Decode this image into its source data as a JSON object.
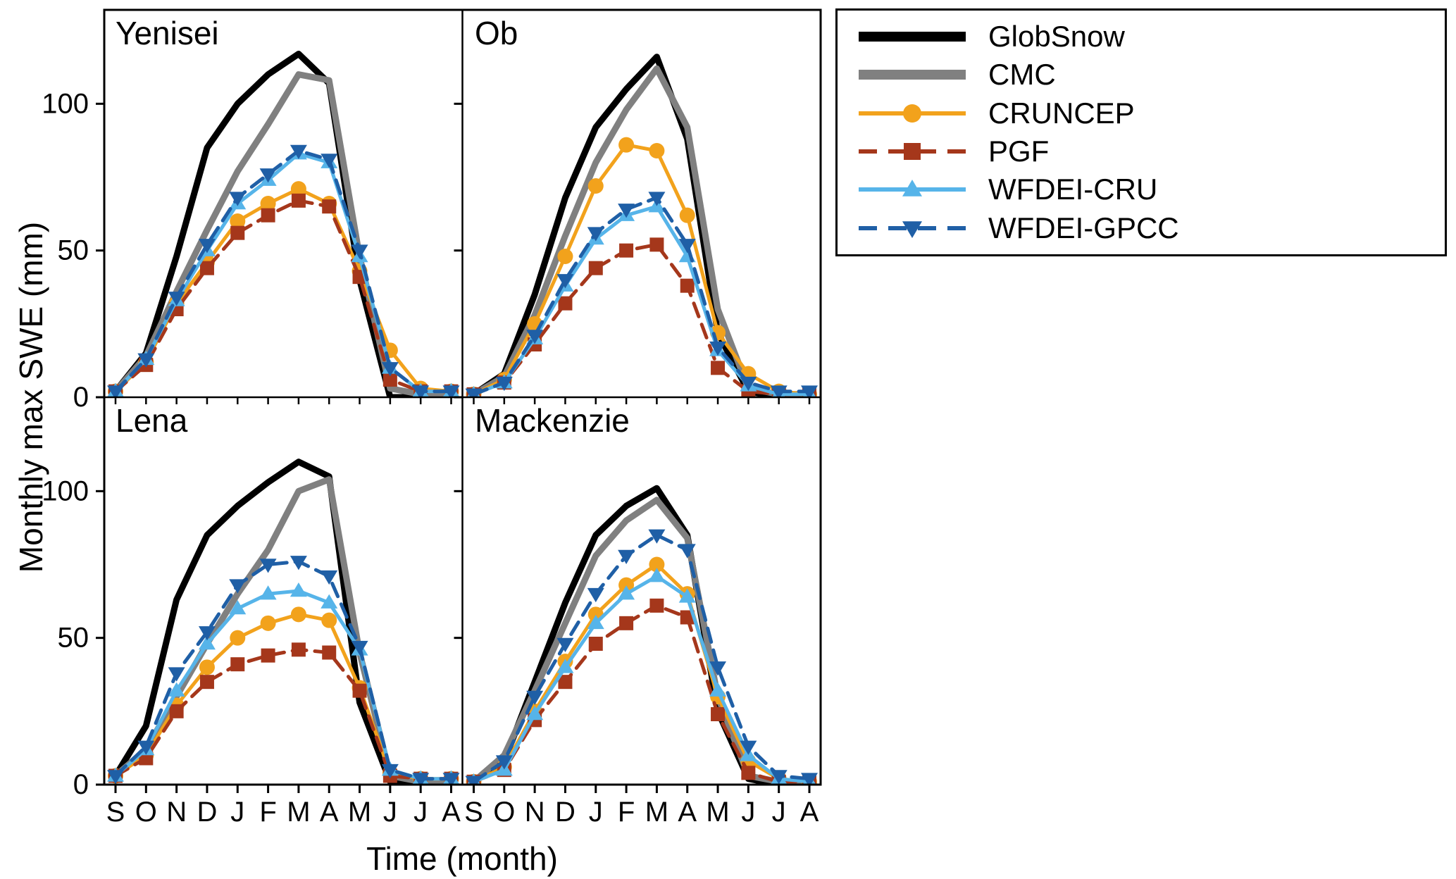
{
  "chart_data": {
    "type": "line",
    "categories": [
      "S",
      "O",
      "N",
      "D",
      "J",
      "F",
      "M",
      "A",
      "M",
      "J",
      "J",
      "A"
    ],
    "xlabel": "Time (month)",
    "ylabel": "Monthly max SWE (mm)",
    "yticks": [
      0,
      50,
      100
    ],
    "ylim": [
      0,
      132
    ],
    "grid": false,
    "legend_position": "top-right-outside",
    "panels": [
      {
        "title": "Yenisei"
      },
      {
        "title": "Ob"
      },
      {
        "title": "Lena"
      },
      {
        "title": "Mackenzie"
      }
    ],
    "series": [
      {
        "name": "GlobSnow",
        "color": "#000000",
        "width": 9,
        "dash": null,
        "marker": null,
        "values": {
          "Yenisei": [
            2,
            15,
            48,
            85,
            100,
            110,
            117,
            107,
            40,
            0,
            0,
            0
          ],
          "Ob": [
            1,
            8,
            35,
            68,
            92,
            105,
            116,
            88,
            22,
            2,
            0,
            0
          ],
          "Lena": [
            3,
            20,
            63,
            85,
            95,
            103,
            110,
            105,
            28,
            1,
            0,
            0
          ],
          "Mackenzie": [
            1,
            8,
            35,
            62,
            85,
            95,
            101,
            85,
            25,
            2,
            0,
            0
          ]
        }
      },
      {
        "name": "CMC",
        "color": "#808080",
        "width": 9,
        "dash": null,
        "marker": null,
        "values": {
          "Yenisei": [
            2,
            14,
            36,
            57,
            77,
            93,
            110,
            108,
            48,
            3,
            1,
            1
          ],
          "Ob": [
            1,
            7,
            28,
            55,
            80,
            98,
            112,
            92,
            30,
            3,
            1,
            1
          ],
          "Lena": [
            3,
            12,
            30,
            48,
            65,
            80,
            100,
            104,
            45,
            3,
            1,
            1
          ],
          "Mackenzie": [
            1,
            10,
            32,
            55,
            78,
            90,
            97,
            84,
            30,
            3,
            1,
            1
          ]
        }
      },
      {
        "name": "CRUNCEP",
        "color": "#f2a21c",
        "width": 5,
        "dash": null,
        "marker": "circle",
        "values": {
          "Yenisei": [
            2,
            12,
            32,
            46,
            60,
            66,
            71,
            66,
            43,
            16,
            3,
            2
          ],
          "Ob": [
            1,
            6,
            25,
            48,
            72,
            86,
            84,
            62,
            22,
            8,
            2,
            1
          ],
          "Lena": [
            3,
            10,
            27,
            40,
            50,
            55,
            58,
            56,
            33,
            4,
            2,
            2
          ],
          "Mackenzie": [
            1,
            6,
            25,
            42,
            58,
            68,
            75,
            65,
            30,
            8,
            2,
            1
          ]
        }
      },
      {
        "name": "PGF",
        "color": "#a5371b",
        "width": 5,
        "dash": "20 12",
        "marker": "square",
        "values": {
          "Yenisei": [
            2,
            11,
            30,
            44,
            56,
            62,
            67,
            65,
            41,
            6,
            2,
            2
          ],
          "Ob": [
            1,
            5,
            18,
            32,
            44,
            50,
            52,
            38,
            10,
            2,
            1,
            1
          ],
          "Lena": [
            3,
            9,
            25,
            35,
            41,
            44,
            46,
            45,
            32,
            3,
            2,
            2
          ],
          "Mackenzie": [
            1,
            5,
            22,
            35,
            48,
            55,
            61,
            57,
            24,
            4,
            1,
            1
          ]
        }
      },
      {
        "name": "WFDEI-CRU",
        "color": "#56b4e9",
        "width": 5,
        "dash": null,
        "marker": "triangle-up",
        "values": {
          "Yenisei": [
            2,
            13,
            33,
            50,
            66,
            74,
            83,
            80,
            48,
            10,
            2,
            2
          ],
          "Ob": [
            1,
            5,
            20,
            38,
            54,
            62,
            65,
            48,
            16,
            4,
            1,
            1
          ],
          "Lena": [
            3,
            12,
            32,
            48,
            60,
            65,
            66,
            62,
            46,
            5,
            2,
            2
          ],
          "Mackenzie": [
            1,
            5,
            24,
            40,
            55,
            65,
            71,
            64,
            32,
            10,
            2,
            1
          ]
        }
      },
      {
        "name": "WFDEI-GPCC",
        "color": "#1f5fa6",
        "width": 5,
        "dash": "20 12",
        "marker": "triangle-down",
        "values": {
          "Yenisei": [
            2,
            13,
            34,
            52,
            68,
            76,
            84,
            81,
            50,
            10,
            2,
            2
          ],
          "Ob": [
            1,
            5,
            21,
            40,
            56,
            64,
            68,
            52,
            17,
            5,
            2,
            2
          ],
          "Lena": [
            3,
            13,
            38,
            52,
            68,
            75,
            76,
            71,
            47,
            5,
            2,
            2
          ],
          "Mackenzie": [
            1,
            8,
            30,
            48,
            65,
            78,
            85,
            80,
            40,
            13,
            3,
            2
          ]
        }
      }
    ]
  },
  "legend": {
    "items": [
      {
        "label": "GlobSnow"
      },
      {
        "label": "CMC"
      },
      {
        "label": "CRUNCEP"
      },
      {
        "label": "PGF"
      },
      {
        "label": "WFDEI-CRU"
      },
      {
        "label": "WFDEI-GPCC"
      }
    ]
  }
}
